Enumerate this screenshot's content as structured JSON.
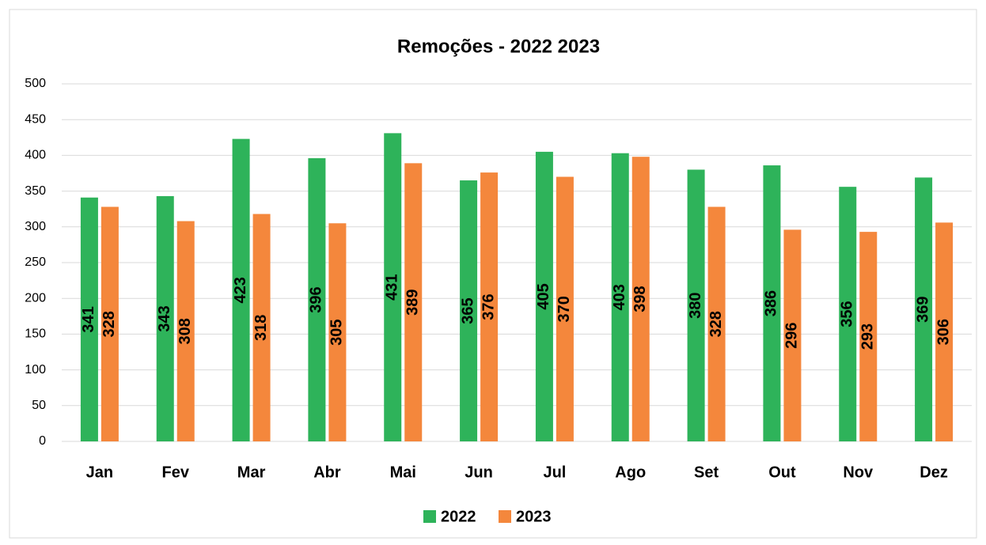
{
  "chart_data": {
    "type": "bar",
    "title": "Remoções - 2022 2023",
    "categories": [
      "Jan",
      "Fev",
      "Mar",
      "Abr",
      "Mai",
      "Jun",
      "Jul",
      "Ago",
      "Set",
      "Out",
      "Nov",
      "Dez"
    ],
    "series": [
      {
        "name": "2022",
        "color": "#2eb35a",
        "values": [
          341,
          343,
          423,
          396,
          431,
          365,
          405,
          403,
          380,
          386,
          356,
          369
        ]
      },
      {
        "name": "2023",
        "color": "#f4873c",
        "values": [
          328,
          308,
          318,
          305,
          389,
          376,
          370,
          398,
          328,
          296,
          293,
          306
        ]
      }
    ],
    "ylim": [
      0,
      500
    ],
    "yticks": [
      0,
      50,
      100,
      150,
      200,
      250,
      300,
      350,
      400,
      450,
      500
    ],
    "grid": true,
    "legend": "bottom"
  }
}
